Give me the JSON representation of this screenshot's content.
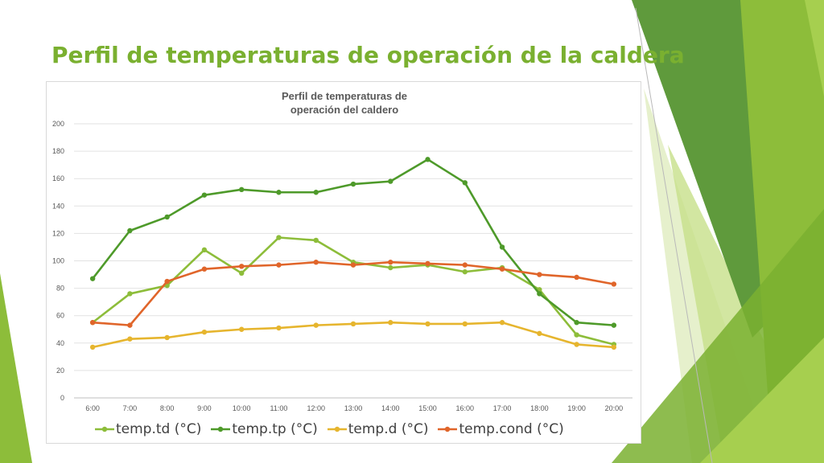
{
  "slide": {
    "title": "Perfil de temperaturas de operación de la caldera"
  },
  "colors": {
    "accent_green": "#7ab030",
    "series_td": "#8dbd3a",
    "series_tp": "#4e9a2a",
    "series_d": "#e6b52e",
    "series_cond": "#e0652a",
    "deco_dark": "#5a9437",
    "deco_light": "#a6cf4f",
    "deco_pale": "#dceab6"
  },
  "chart_data": {
    "type": "line",
    "title_line1": "Perfil de temperaturas de",
    "title_line2": "operación del caldero",
    "xlabel": "",
    "ylabel": "",
    "ylim": [
      0,
      200
    ],
    "yticks": [
      0,
      20,
      40,
      60,
      80,
      100,
      120,
      140,
      160,
      180,
      200
    ],
    "grid": true,
    "legend_position": "bottom",
    "categories": [
      "6:00",
      "7:00",
      "8:00",
      "9:00",
      "10:00",
      "11:00",
      "12:00",
      "13:00",
      "14:00",
      "15:00",
      "16:00",
      "17:00",
      "18:00",
      "19:00",
      "20:00"
    ],
    "series": [
      {
        "name": "temp.td (°C)",
        "color": "#8dbd3a",
        "values": [
          55,
          76,
          82,
          108,
          91,
          117,
          115,
          99,
          95,
          97,
          92,
          95,
          79,
          46,
          39
        ]
      },
      {
        "name": "temp.tp (°C)",
        "color": "#4e9a2a",
        "values": [
          87,
          122,
          132,
          148,
          152,
          150,
          150,
          156,
          158,
          174,
          157,
          110,
          76,
          55,
          53
        ]
      },
      {
        "name": "temp.d (°C)",
        "color": "#e6b52e",
        "values": [
          37,
          43,
          44,
          48,
          50,
          51,
          53,
          54,
          55,
          54,
          54,
          55,
          47,
          39,
          37
        ]
      },
      {
        "name": "temp.cond (°C)",
        "color": "#e0652a",
        "values": [
          55,
          53,
          85,
          94,
          96,
          97,
          99,
          97,
          99,
          98,
          97,
          94,
          90,
          88,
          83
        ]
      }
    ]
  }
}
